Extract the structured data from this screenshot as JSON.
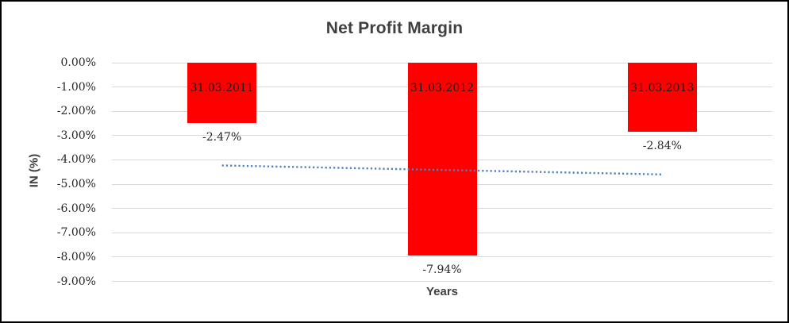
{
  "window": {
    "background_color": "#FFFFFF",
    "border_color": "#000000"
  },
  "chart_data": {
    "type": "bar",
    "title": "Net Profit Margin",
    "xlabel": "Years",
    "ylabel": "IN (%)",
    "categories": [
      "31.03.2011",
      "31.03.2012",
      "31.03.2013"
    ],
    "values": [
      -2.47,
      -7.94,
      -2.84
    ],
    "value_labels": [
      "-2.47%",
      "-7.94%",
      "-2.84%"
    ],
    "ylim": [
      0,
      -9
    ],
    "yticks": [
      "0.00%",
      "-1.00%",
      "-2.00%",
      "-3.00%",
      "-4.00%",
      "-5.00%",
      "-6.00%",
      "-7.00%",
      "-8.00%",
      "-9.00%"
    ],
    "grid": true,
    "legend": "none",
    "colors": {
      "bar": "#FF0000",
      "bar_category_label": "#1A1A1A",
      "value_label": "#262626",
      "tick_label": "#262626",
      "title": "#404040",
      "axis_title": "#3F3F3F",
      "gridline": "#D9D9D9",
      "trendline": "#4E81BD"
    },
    "trendline": {
      "type": "linear",
      "style": "dotted",
      "start_value": -4.23,
      "end_value": -4.6
    }
  }
}
